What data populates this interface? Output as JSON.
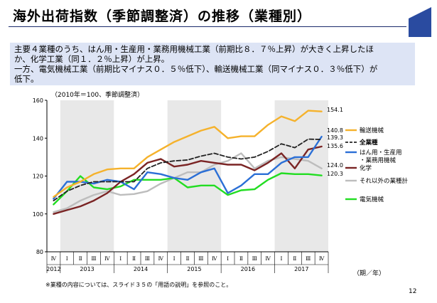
{
  "header": {
    "title": "海外出荷指数（季節調整済）の推移（業種別）"
  },
  "summary": {
    "lines": [
      "主要４業種のうち、はん用・生産用・業務用機械工業（前期比８．７％上昇）が大きく上昇したほ",
      "か、化学工業（同１．２％上昇）が上昇。",
      "一方、電気機械工業（前期比マイナス０．５％低下）、輸送機械工業（同マイナス０．３％低下）が",
      "低下。"
    ]
  },
  "footer": {
    "footnote": "※業種の内容については、スライド３５の「用語の説明」を参照のこと。",
    "page": "12"
  },
  "colors": {
    "yellow": "#f5b22c",
    "black": "#222222",
    "blue": "#2b6fd6",
    "brown": "#7a2424",
    "gray": "#bdbdbd",
    "green": "#22dd22",
    "shade": "#e8e8e8",
    "brand": "#2a4ba0"
  },
  "chart_data": {
    "type": "line",
    "scale_note": "（2010年＝100、季節調整済）",
    "unit_label": "（期／年）",
    "ylim": [
      80,
      160
    ],
    "yticks": [
      80,
      100,
      120,
      140,
      160
    ],
    "quarters": [
      "Ⅳ",
      "Ⅰ",
      "Ⅱ",
      "Ⅲ",
      "Ⅳ",
      "Ⅰ",
      "Ⅱ",
      "Ⅲ",
      "Ⅳ",
      "Ⅰ",
      "Ⅱ",
      "Ⅲ",
      "Ⅳ",
      "Ⅰ",
      "Ⅱ",
      "Ⅲ",
      "Ⅳ",
      "Ⅰ",
      "Ⅱ",
      "Ⅲ",
      "Ⅳ"
    ],
    "years": [
      {
        "label": "2012",
        "start": 0,
        "end": 0
      },
      {
        "label": "2013",
        "start": 1,
        "end": 4
      },
      {
        "label": "2014",
        "start": 5,
        "end": 8
      },
      {
        "label": "2015",
        "start": 9,
        "end": 12
      },
      {
        "label": "2016",
        "start": 13,
        "end": 16
      },
      {
        "label": "2017",
        "start": 17,
        "end": 20
      }
    ],
    "shaded_years": [
      1,
      3,
      5
    ],
    "grid": false,
    "series": [
      {
        "name": "輸送機械",
        "color": "yellow",
        "end_label": "154.1",
        "values": [
          109,
          114,
          117,
          121,
          123.5,
          124,
          124,
          130,
          134,
          138,
          141,
          144,
          146,
          140,
          141,
          141,
          147,
          151.5,
          149,
          154.5,
          154.1
        ]
      },
      {
        "name": "全業種",
        "color": "black",
        "end_label": "139.3",
        "dashed": true,
        "values": [
          107,
          112,
          115,
          117,
          117,
          117,
          117,
          124,
          127,
          128,
          128.5,
          130.5,
          132,
          130,
          129,
          130,
          133,
          137,
          135,
          139.5,
          139.3
        ]
      },
      {
        "name": "はん用・生産用・業務用機械",
        "color": "blue",
        "end_label": "140.8",
        "values": [
          108,
          117,
          117,
          116,
          118,
          117,
          113,
          122,
          121,
          119,
          118,
          122,
          124,
          111,
          115,
          121,
          121,
          127,
          130,
          130,
          140.8
        ]
      },
      {
        "name": "化学",
        "color": "brown",
        "end_label": "135.6",
        "values": [
          100,
          102,
          104,
          107,
          111,
          117,
          121,
          127,
          129,
          125,
          126,
          128,
          127,
          126,
          126,
          123,
          127,
          132,
          124,
          134,
          135.6
        ]
      },
      {
        "name": "それ以外の業種計",
        "color": "gray",
        "end_label": "124.0",
        "values": [
          101,
          103,
          107,
          110,
          112,
          110,
          110.5,
          112,
          116,
          119,
          122,
          122,
          126,
          128,
          132,
          124,
          128,
          130,
          129,
          128,
          124.0
        ]
      },
      {
        "name": "電気機械",
        "color": "green",
        "end_label": "120.3",
        "values": [
          105,
          112,
          120,
          114,
          113,
          114.5,
          118,
          118,
          118,
          119,
          114,
          115,
          115,
          110,
          112.5,
          113,
          118,
          121.5,
          121,
          121,
          120.3
        ]
      }
    ]
  }
}
